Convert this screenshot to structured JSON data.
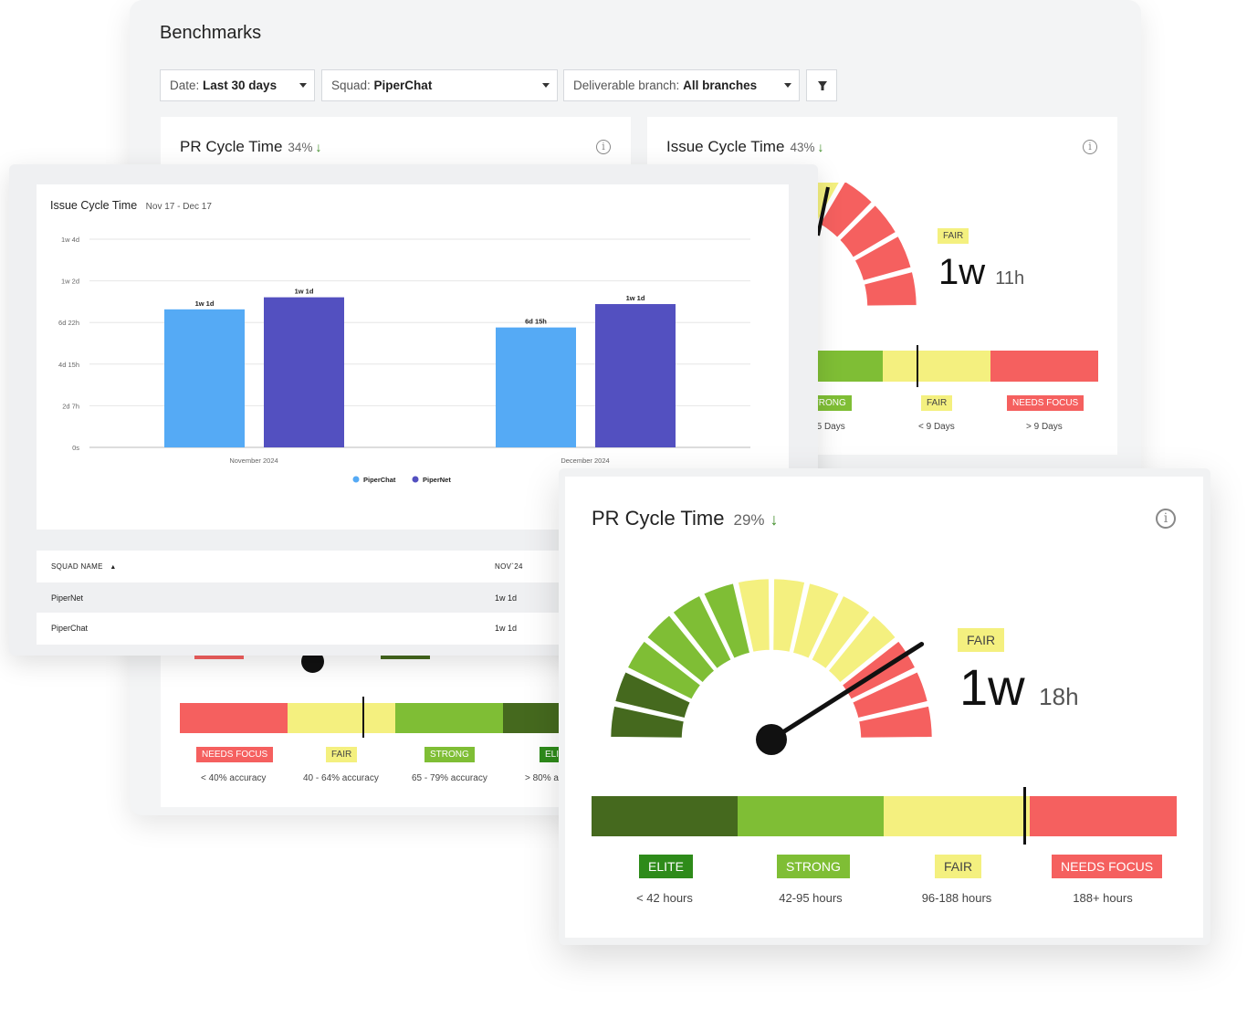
{
  "page": {
    "title": "Benchmarks"
  },
  "filters": {
    "date": {
      "label": "Date: ",
      "value": "Last 30 days"
    },
    "squad": {
      "label": "Squad: ",
      "value": "PiperChat"
    },
    "branch": {
      "label": "Deliverable branch: ",
      "value": "All branches"
    }
  },
  "pr_card_back": {
    "title": "PR Cycle Time",
    "pct": "34%",
    "arrow": "↓",
    "badges": [
      "NEEDS FOCUS",
      "FAIR",
      "STRONG",
      "ELITE"
    ],
    "ranges": [
      "< 40% accuracy",
      "40 - 64% accuracy",
      "65 - 79% accuracy",
      "> 80% accuracy"
    ]
  },
  "issue_card_back": {
    "title": "Issue Cycle Time",
    "pct": "43%",
    "arrow": "↓",
    "status": "FAIR",
    "value_big": "1w",
    "value_small": "11h",
    "badges": [
      "STRONG",
      "FAIR",
      "NEEDS FOCUS"
    ],
    "ranges": [
      "< 5 Days",
      "< 9 Days",
      "> 9 Days"
    ]
  },
  "chart_card": {
    "title": "Issue Cycle Time",
    "date_range": "Nov 17 - Dec 17"
  },
  "chart_data": {
    "type": "bar",
    "title": "Issue Cycle Time",
    "categories": [
      "November 2024",
      "December 2024"
    ],
    "y_ticks": [
      "0s",
      "2d 7h",
      "4d 15h",
      "6d 22h",
      "1w 2d",
      "1w 4d"
    ],
    "ylim_hours": [
      0,
      276
    ],
    "series": [
      {
        "name": "PiperChat",
        "color": "#55aaf5",
        "values_hours": [
          183,
          159
        ],
        "labels": [
          "1w 1d",
          "6d 15h"
        ]
      },
      {
        "name": "PiperNet",
        "color": "#5350c0",
        "values_hours": [
          199,
          190
        ],
        "labels": [
          "1w 1d",
          "1w 1d"
        ]
      }
    ],
    "legend": "bottom"
  },
  "table": {
    "headers": [
      "SQUAD NAME",
      "NOV`24"
    ],
    "rows": [
      {
        "name": "PiperNet",
        "value": "1w 1d"
      },
      {
        "name": "PiperChat",
        "value": "1w 1d"
      }
    ]
  },
  "front_card": {
    "title": "PR Cycle Time",
    "pct": "29%",
    "arrow": "↓",
    "status": "FAIR",
    "value_big": "1w",
    "value_small": "18h",
    "badges": [
      "ELITE",
      "STRONG",
      "FAIR",
      "NEEDS FOCUS"
    ],
    "ranges": [
      "< 42 hours",
      "42-95 hours",
      "96-188 hours",
      "188+ hours"
    ],
    "bar_marker_fraction": 0.74,
    "needle_fraction": 0.82
  },
  "colors": {
    "elite": "#45691e",
    "strong": "#7fbe35",
    "fair": "#f4f07f",
    "needs_focus": "#f5605f"
  }
}
